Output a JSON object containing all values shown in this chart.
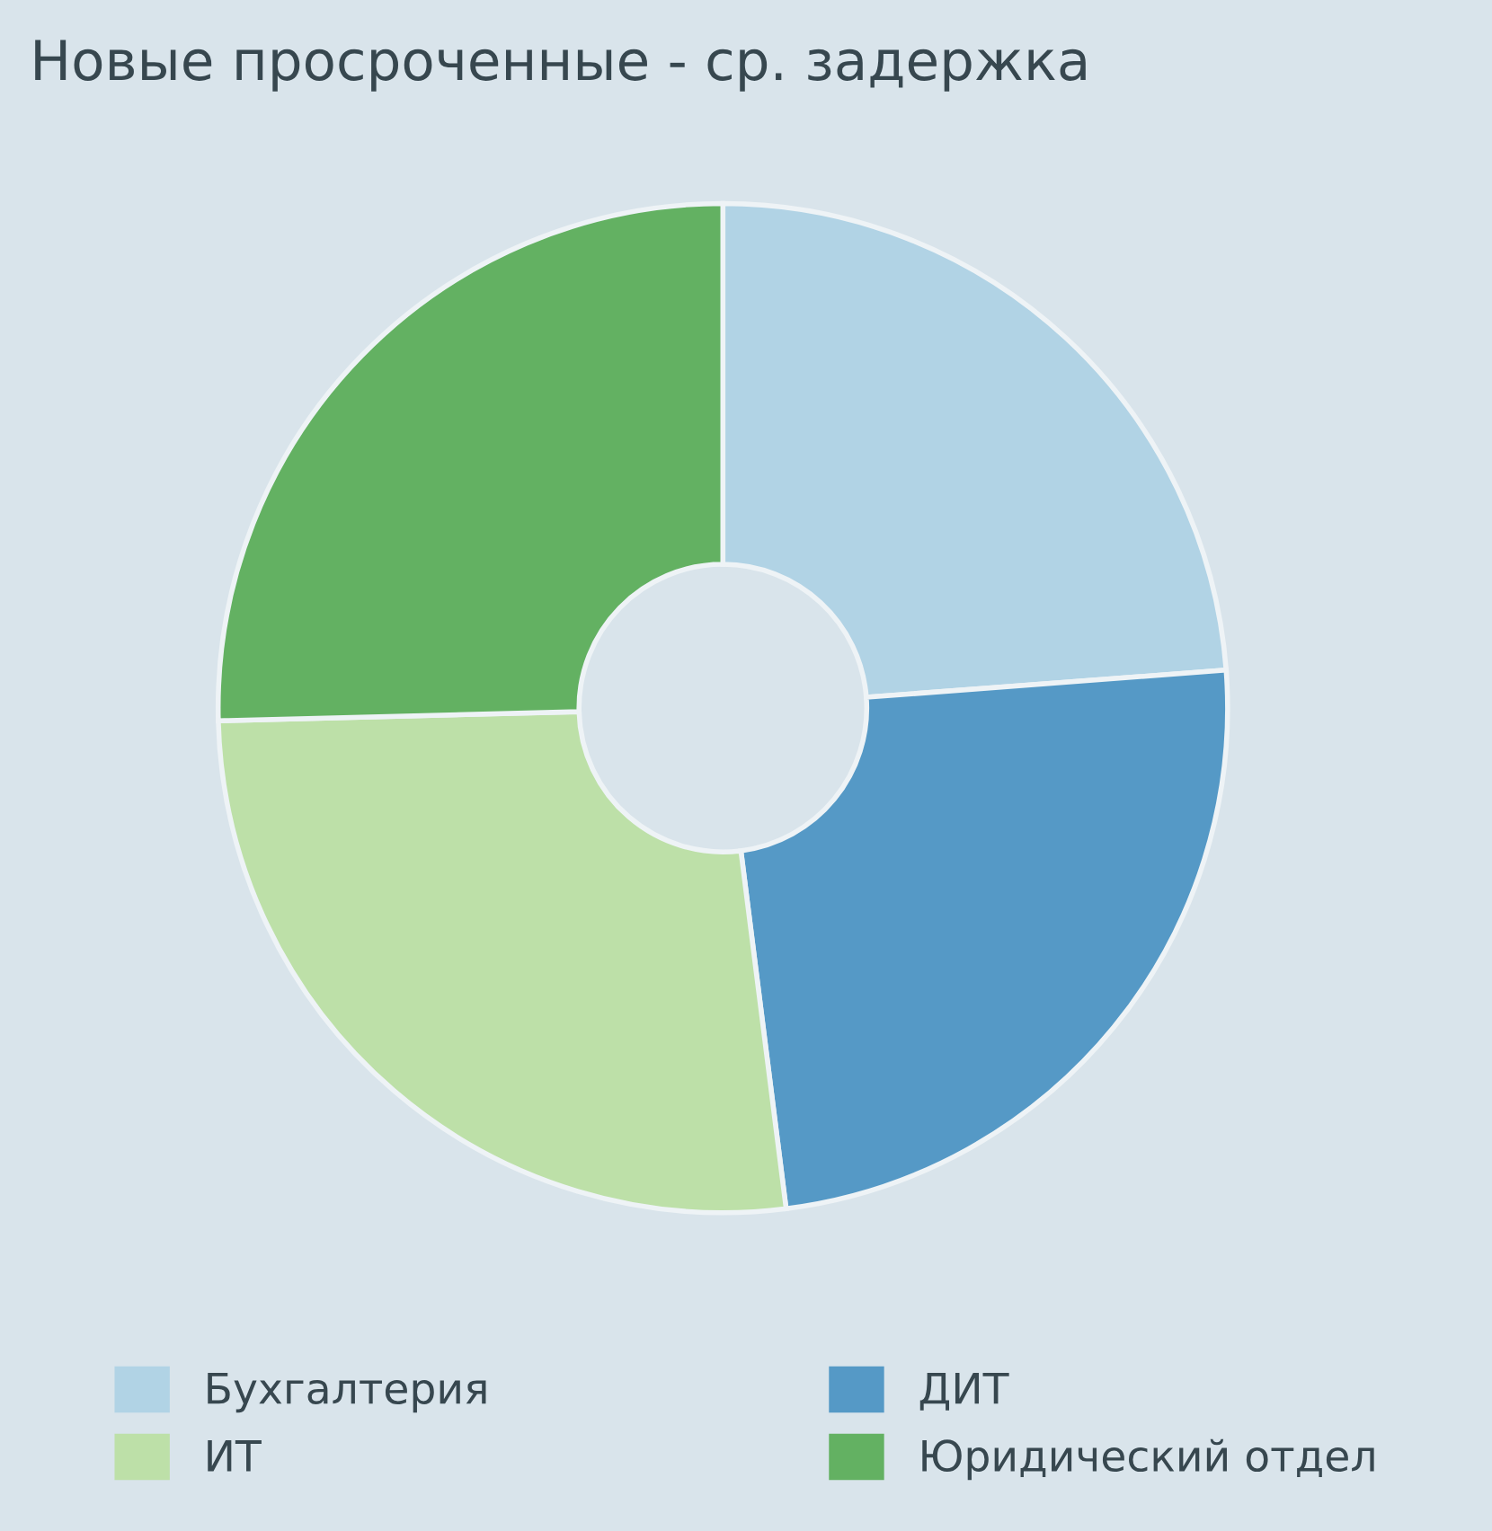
{
  "chart_data": {
    "type": "donut",
    "title": "Новые просроченные - ср. задержка",
    "categories": [
      "Бухгалтерия",
      "ДИТ",
      "ИТ",
      "Юридический отдел"
    ],
    "values": [
      23.8,
      24.2,
      26.6,
      25.4
    ],
    "colors": [
      "#b1d3e5",
      "#5599c6",
      "#bde0a8",
      "#63b162"
    ],
    "legend": "bottom"
  }
}
